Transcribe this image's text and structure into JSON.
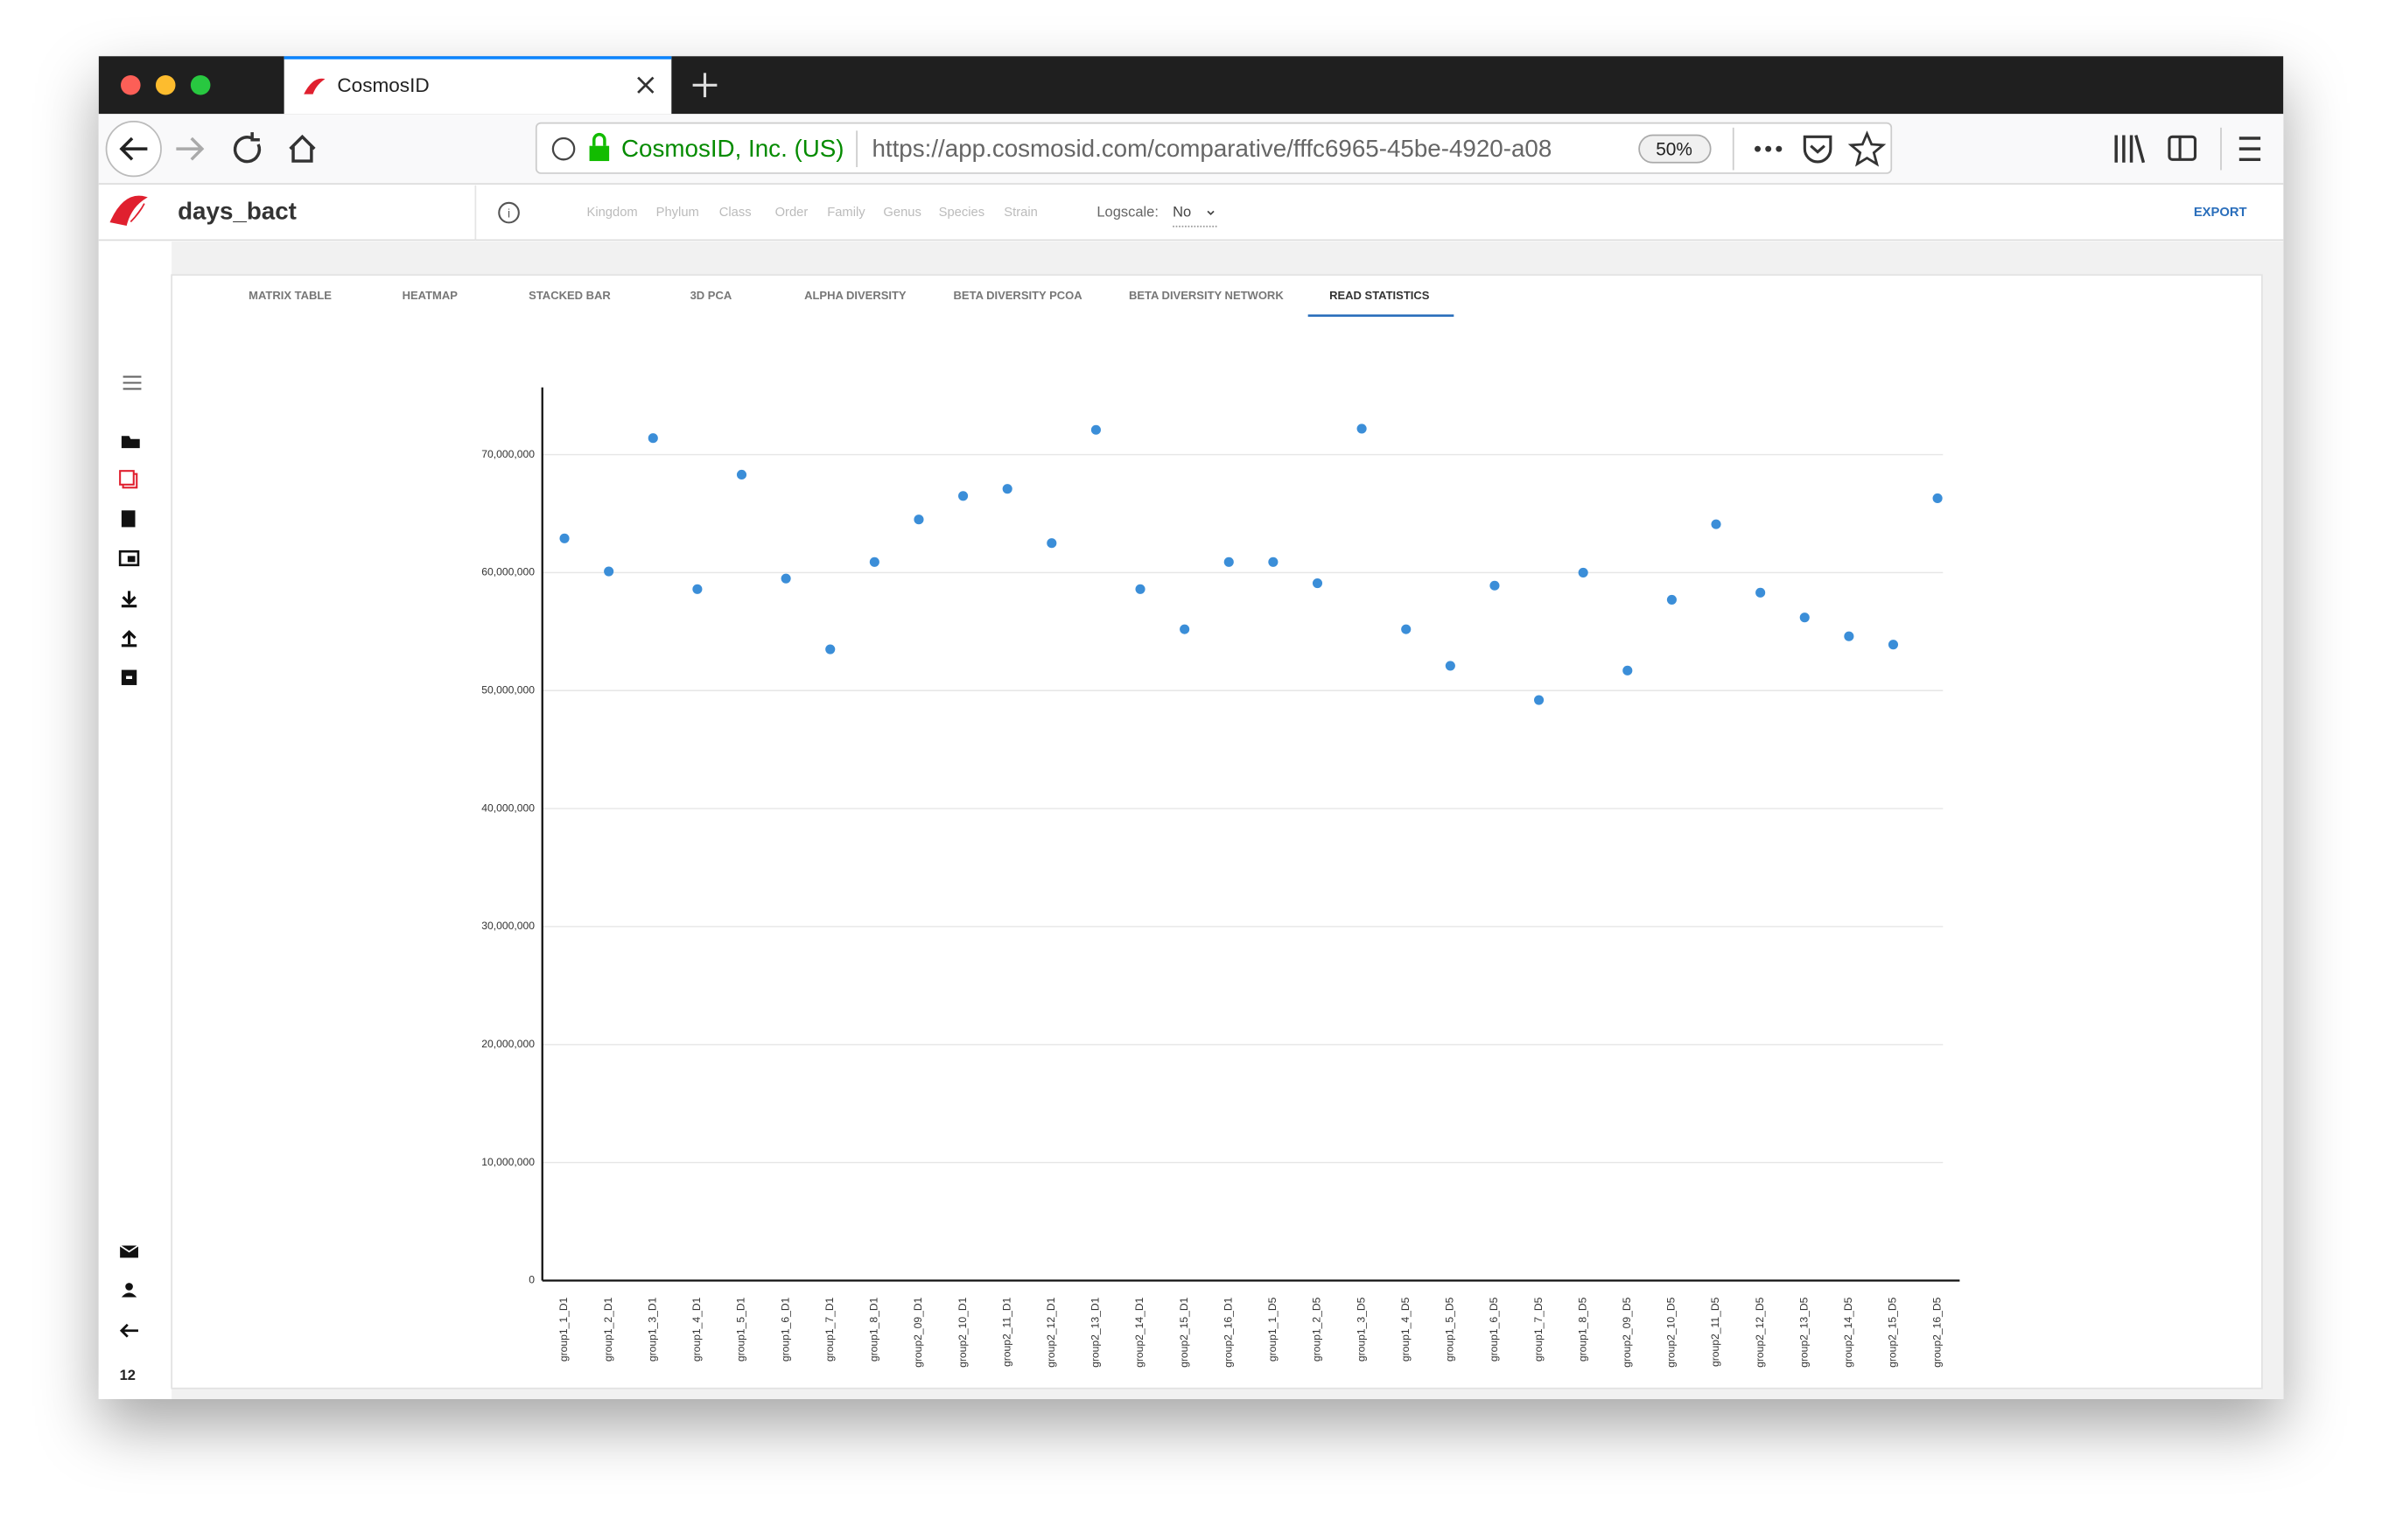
{
  "browser": {
    "tab_title": "CosmosID",
    "site_identity": "CosmosID, Inc. (US)",
    "url": "https://app.cosmosid.com/comparative/fffc6965-45be-4920-a08",
    "zoom": "50%"
  },
  "app": {
    "title": "days_bact",
    "levels": [
      "Kingdom",
      "Phylum",
      "Class",
      "Order",
      "Family",
      "Genus",
      "Species",
      "Strain"
    ],
    "logscale_label": "Logscale:",
    "logscale_value": "No",
    "export": "EXPORT",
    "tabs": [
      "MATRIX TABLE",
      "HEATMAP",
      "STACKED BAR",
      "3D PCA",
      "ALPHA DIVERSITY",
      "BETA DIVERSITY PCOA",
      "BETA DIVERSITY NETWORK",
      "READ STATISTICS"
    ],
    "sidebar_count": "12"
  },
  "chart_data": {
    "type": "scatter",
    "categories": [
      "group1_1_D1",
      "group1_2_D1",
      "group1_3_D1",
      "group1_4_D1",
      "group1_5_D1",
      "group1_6_D1",
      "group1_7_D1",
      "group1_8_D1",
      "group2_09_D1",
      "group2_10_D1",
      "group2_11_D1",
      "group2_12_D1",
      "group2_13_D1",
      "group2_14_D1",
      "group2_15_D1",
      "group2_16_D1",
      "group1_1_D5",
      "group1_2_D5",
      "group1_3_D5",
      "group1_4_D5",
      "group1_5_D5",
      "group1_6_D5",
      "group1_7_D5",
      "group1_8_D5",
      "group2_09_D5",
      "group2_10_D5",
      "group2_11_D5",
      "group2_12_D5",
      "group2_13_D5",
      "group2_14_D5",
      "group2_15_D5",
      "group2_16_D5"
    ],
    "values": [
      62900000,
      60100000,
      71400000,
      58600000,
      68300000,
      59500000,
      53500000,
      60900000,
      64500000,
      66500000,
      67100000,
      62500000,
      72100000,
      58600000,
      55200000,
      60900000,
      60900000,
      59100000,
      72200000,
      55200000,
      52100000,
      58900000,
      49200000,
      60000000,
      51700000,
      57700000,
      64100000,
      58300000,
      56200000,
      54600000,
      53900000,
      66300000
    ],
    "color": "#3b8ed8",
    "ylim": [
      0,
      75700000
    ],
    "yticks": [
      0,
      {
        "value": 10000000,
        "label": "10,000,000"
      },
      {
        "value": 20000000,
        "label": "20,000,000"
      },
      {
        "value": 30000000,
        "label": "30,000,000"
      },
      {
        "value": 40000000,
        "label": "40,000,000"
      },
      {
        "value": 50000000,
        "label": "50,000,000"
      },
      {
        "value": 60000000,
        "label": "60,000,000"
      },
      {
        "value": 70000000,
        "label": "70,000,000"
      }
    ],
    "grid": true
  }
}
